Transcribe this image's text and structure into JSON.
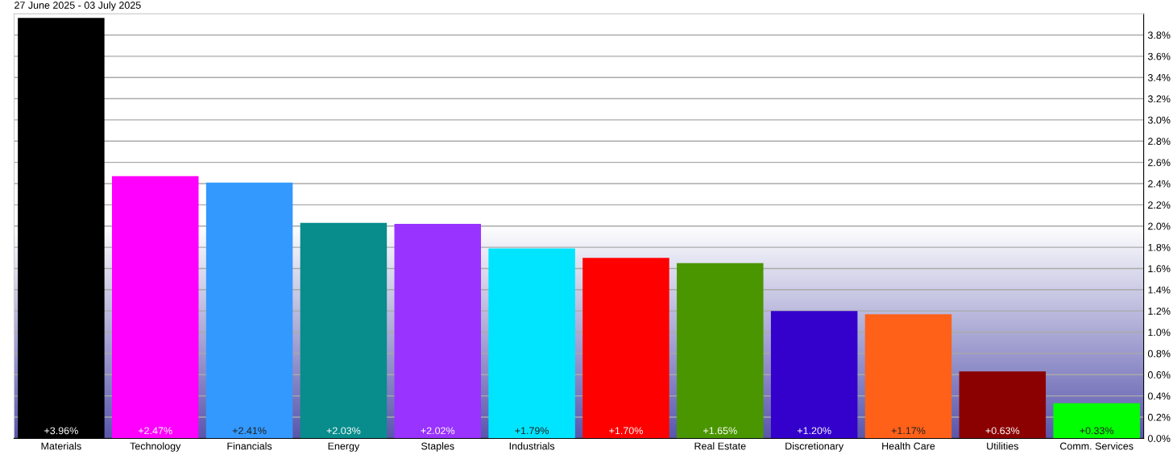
{
  "chart_data": {
    "type": "bar",
    "title": "27 June 2025 - 03 July 2025",
    "categories": [
      "Materials",
      "Technology",
      "Financials",
      "Energy",
      "Staples",
      "Industrials",
      null,
      "Real Estate",
      "Discretionary",
      "Health Care",
      "Utilities",
      "Comm. Services"
    ],
    "values": [
      3.96,
      2.47,
      2.41,
      2.03,
      2.02,
      1.79,
      1.7,
      1.65,
      1.2,
      1.17,
      0.63,
      0.33
    ],
    "value_labels": [
      "+3.96%",
      "+2.47%",
      "+2.41%",
      "+2.03%",
      "+2.02%",
      "+1.79%",
      "+1.70%",
      "+1.65%",
      "+1.20%",
      "+1.17%",
      "+0.63%",
      "+0.33%"
    ],
    "colors": [
      "#000000",
      "#ff00ff",
      "#3399ff",
      "#088c8c",
      "#9933ff",
      "#00e5ff",
      "#ff0000",
      "#4a9600",
      "#3300cc",
      "#ff6119",
      "#8b0000",
      "#00ff00"
    ],
    "ylim": [
      0,
      4.0
    ],
    "yticks": [
      {
        "value": 0,
        "label": "0.0%"
      },
      {
        "value": 0.2,
        "label": "0.2%"
      },
      {
        "value": 0.4,
        "label": "0.4%"
      },
      {
        "value": 0.6,
        "label": "0.6%"
      },
      {
        "value": 0.8,
        "label": "0.8%"
      },
      {
        "value": 1.0,
        "label": "1.0%"
      },
      {
        "value": 1.2,
        "label": "1.2%"
      },
      {
        "value": 1.4,
        "label": "1.4%"
      },
      {
        "value": 1.6,
        "label": "1.6%"
      },
      {
        "value": 1.8,
        "label": "1.8%"
      },
      {
        "value": 2.0,
        "label": "2.0%"
      },
      {
        "value": 2.2,
        "label": "2.2%"
      },
      {
        "value": 2.4,
        "label": "2.4%"
      },
      {
        "value": 2.6,
        "label": "2.6%"
      },
      {
        "value": 2.8,
        "label": "2.8%"
      },
      {
        "value": 3.0,
        "label": "3.0%"
      },
      {
        "value": 3.2,
        "label": "3.2%"
      },
      {
        "value": 3.4,
        "label": "3.4%"
      },
      {
        "value": 3.6,
        "label": "3.6%"
      },
      {
        "value": 3.8,
        "label": "3.8%"
      }
    ],
    "grid": "y",
    "legend": false
  }
}
